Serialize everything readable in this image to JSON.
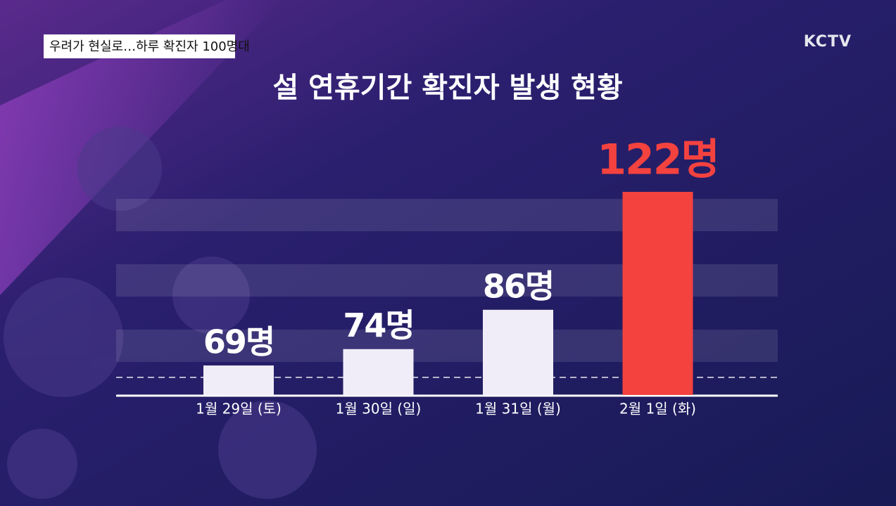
{
  "caption": "우려가 현실로…하루 확진자 100명대",
  "logo": "KCTV",
  "chart_data": {
    "type": "bar",
    "title": "설 연휴기간 확진자 발생 현황",
    "categories": [
      "1월 29일 (토)",
      "1월 30일 (일)",
      "1월 31일 (월)",
      "2월 1일 (화)"
    ],
    "values": [
      69,
      74,
      86,
      122
    ],
    "value_labels": [
      "69명",
      "74명",
      "86명",
      "122명"
    ],
    "colors": [
      "#f1edf8",
      "#f1edf8",
      "#f1edf8",
      "#f4423f"
    ],
    "ylim": [
      60,
      125
    ]
  }
}
